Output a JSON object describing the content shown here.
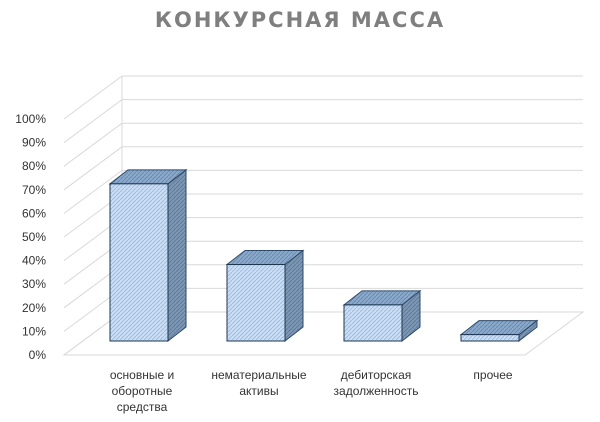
{
  "chart_data": {
    "type": "bar",
    "title": "КОНКУРСНАЯ  МАССА",
    "categories": [
      [
        "основные и",
        "оборотные",
        "средства"
      ],
      [
        "нематериальные",
        "активы"
      ],
      [
        "дебиторская",
        "задолженность"
      ],
      [
        "прочее"
      ]
    ],
    "values": [
      74,
      36,
      17,
      3
    ],
    "yticks": [
      "0%",
      "10%",
      "20%",
      "30%",
      "40%",
      "50%",
      "60%",
      "70%",
      "80%",
      "90%",
      "100%"
    ],
    "ylim": [
      0,
      100
    ],
    "grid": true,
    "style": "3d-column",
    "colors": {
      "bar_front": "#b7d3f2",
      "bar_side": "#6a8cae",
      "bar_top": "#7d9fc4",
      "grid": "#d9d9d9"
    }
  }
}
